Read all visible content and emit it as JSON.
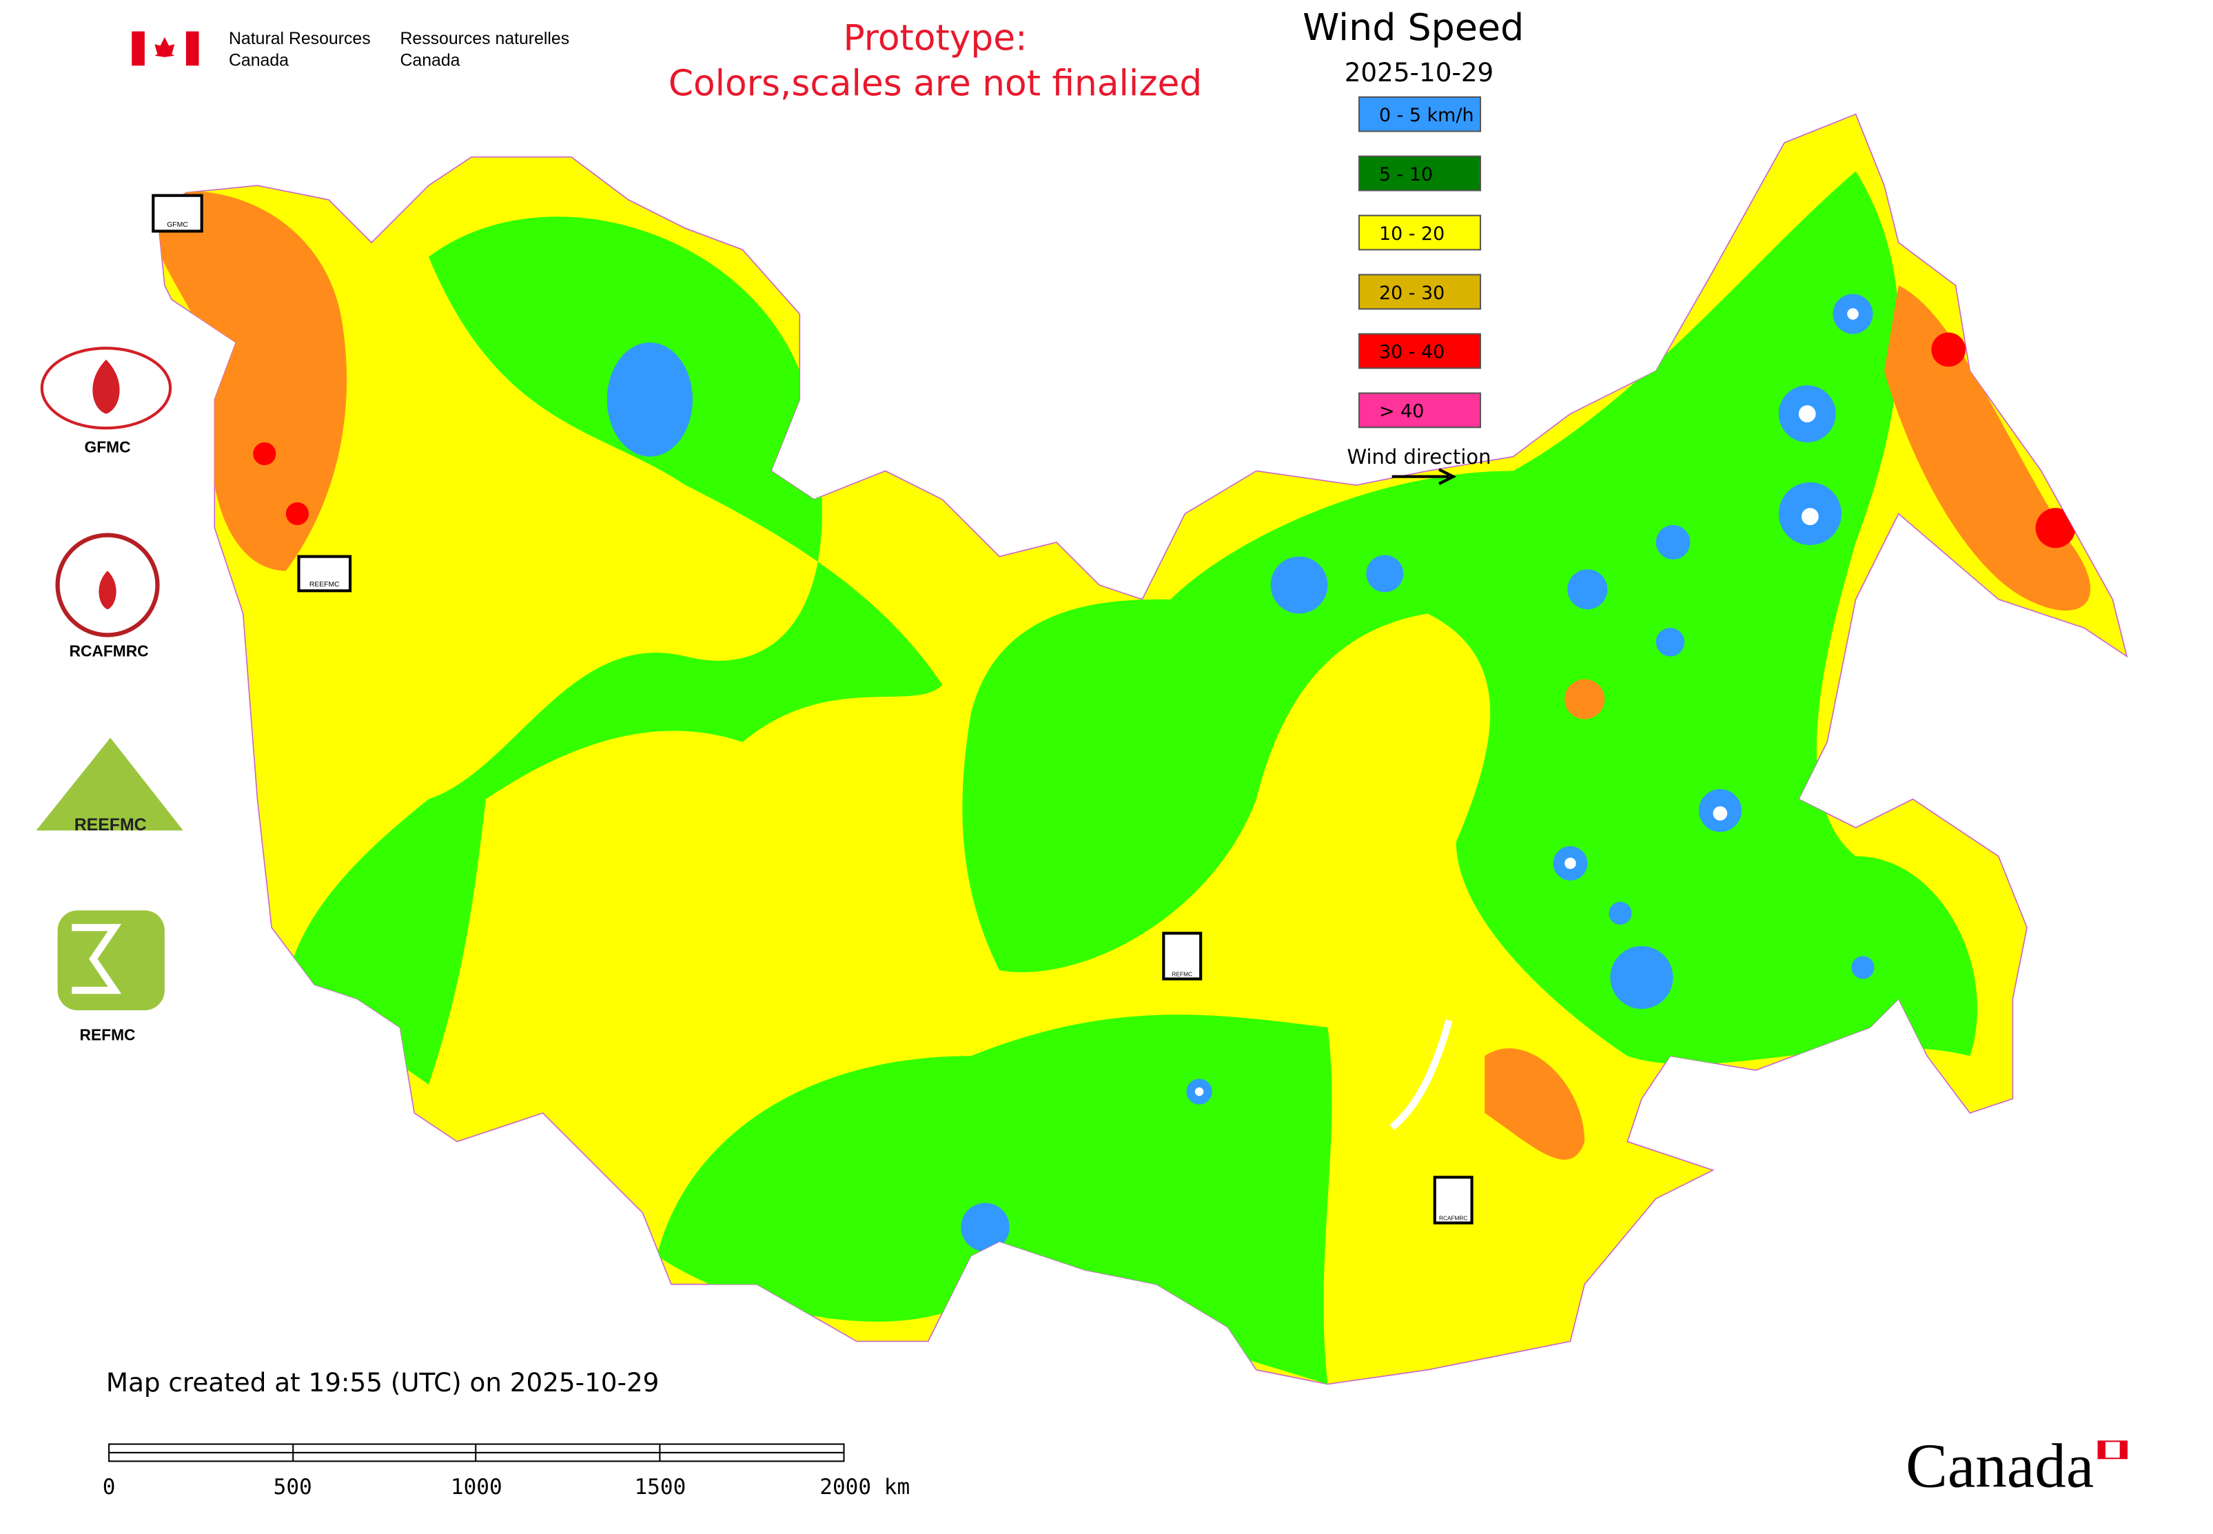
{
  "header": {
    "agency_en": [
      "Natural Resources",
      "Canada"
    ],
    "agency_fr": [
      "Ressources naturelles",
      "Canada"
    ]
  },
  "notice": [
    "Prototype:",
    "Colors,scales are not finalized"
  ],
  "legend": {
    "title": "Wind Speed",
    "date": "2025-10-29",
    "items": [
      {
        "label": "0 - 5 km/h",
        "color": "#3399ff"
      },
      {
        "label": "5 - 10",
        "color": "#008000"
      },
      {
        "label": "10 - 20",
        "color": "#ffff00"
      },
      {
        "label": "20 - 30",
        "color": "#d9b300"
      },
      {
        "label": "30 - 40",
        "color": "#ff0000"
      },
      {
        "label": "> 40",
        "color": "#ff3399"
      }
    ],
    "direction": "Wind direction"
  },
  "logos": [
    "GFMC",
    "RCAFMRC",
    "REEFMC",
    "REFMC"
  ],
  "markers": [
    "GFMC",
    "REEFMC",
    "REFMC",
    "RCAFMRC"
  ],
  "footer": {
    "created": "Map created at 19:55 (UTC) on 2025-10-29",
    "scale": [
      "0",
      "500",
      "1000",
      "1500",
      "2000 km"
    ],
    "wordmark": "Canada"
  }
}
